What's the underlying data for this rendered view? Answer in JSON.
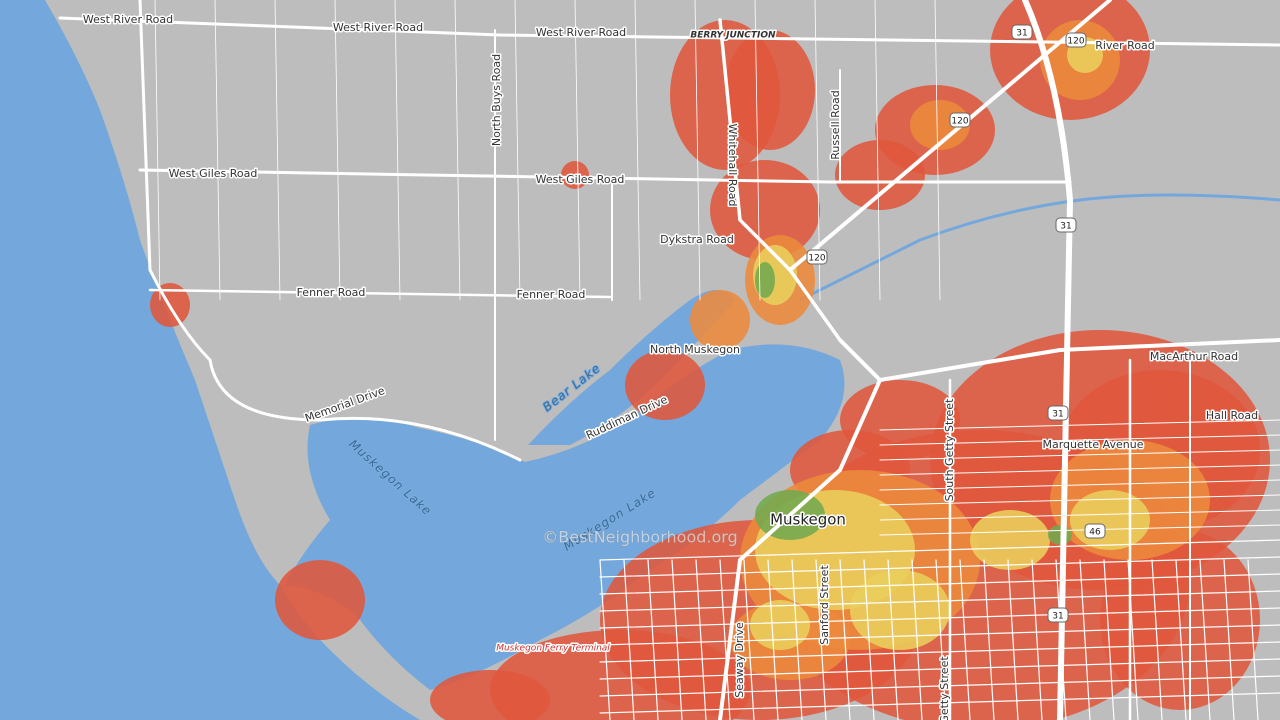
{
  "map": {
    "road_labels": [
      "West River Road",
      "West River Road",
      "West River Road",
      "River Road",
      "North Buys Road",
      "Russell Road",
      "Whitehall Road",
      "West Giles Road",
      "West Giles Road",
      "Dykstra Road",
      "Fenner Road",
      "Fenner Road",
      "Memorial Drive",
      "Ruddiman Drive",
      "Seaway Drive",
      "Sanford Street",
      "South Getty Street",
      "Getty Street",
      "MacArthur Road",
      "Hall Road",
      "Marquette Avenue"
    ],
    "place_labels": [
      "BERRY JUNCTION",
      "North Muskegon",
      "Muskegon",
      "Muskegon Ferry Terminal"
    ],
    "water_labels": [
      "Bear Lake",
      "Muskegon Lake",
      "Muskegon Lake"
    ],
    "route_shields": [
      "31",
      "120",
      "120",
      "31",
      "120",
      "31",
      "46",
      "31"
    ],
    "watermark": "©BestNeighborhood.org"
  }
}
